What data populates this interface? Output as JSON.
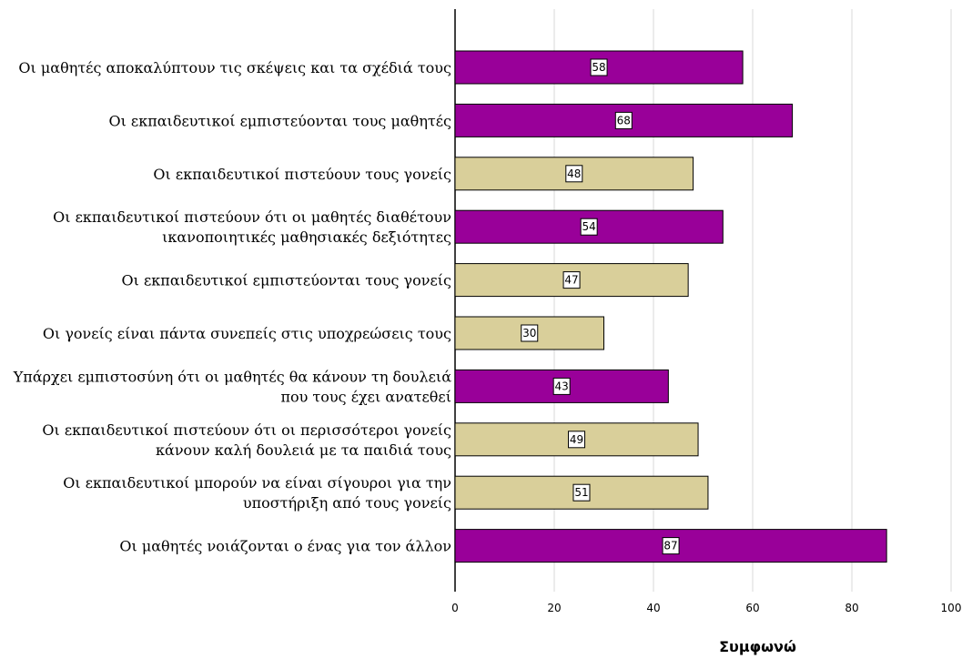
{
  "chart_data": {
    "type": "bar",
    "orientation": "horizontal",
    "title": "",
    "xlabel": "Συμφωνώ",
    "ylabel": "",
    "xlim": [
      0,
      100
    ],
    "x_ticks": [
      "0",
      "20",
      "40",
      "60",
      "80",
      "100"
    ],
    "grid": "vertical",
    "legend": "none",
    "colors": {
      "purple": "#990099",
      "tan": "#D9CF9A"
    },
    "categories": [
      [
        "Οι μαθητές αποκαλύπτουν τις σκέψεις και τα σχέδιά τους"
      ],
      [
        "Οι εκπαιδευτικοί εμπιστεύονται τους μαθητές"
      ],
      [
        "Οι εκπαιδευτικοί πιστεύουν τους γονείς"
      ],
      [
        "Οι εκπαιδευτικοί πιστεύουν ότι οι μαθητές διαθέτουν",
        "ικανοποιητικές  μαθησιακές δεξιότητες"
      ],
      [
        "Οι εκπαιδευτικοί εμπιστεύονται τους γονείς"
      ],
      [
        "Οι γονείς είναι πάντα συνεπείς στις υποχρεώσεις τους"
      ],
      [
        "Υπάρχει εμπιστοσύνη ότι οι μαθητές θα κάνουν τη δουλειά",
        "που τους έχει ανατεθεί"
      ],
      [
        "Οι εκπαιδευτικοί πιστεύουν ότι οι περισσότεροι γονείς",
        "κάνουν καλή δουλειά με τα παιδιά τους"
      ],
      [
        "Οι εκπαιδευτικοί μπορούν να είναι σίγουροι για την",
        "υποστήριξη από τους γονείς"
      ],
      [
        "Οι μαθητές νοιάζονται ο ένας για τον άλλον"
      ]
    ],
    "values": [
      58,
      68,
      48,
      54,
      47,
      30,
      43,
      49,
      51,
      87
    ],
    "value_labels": [
      "58",
      "68",
      "48",
      "54",
      "47",
      "30",
      "43",
      "49",
      "51",
      "87"
    ],
    "bar_colors": [
      "purple",
      "purple",
      "tan",
      "purple",
      "tan",
      "tan",
      "purple",
      "tan",
      "tan",
      "purple"
    ]
  }
}
